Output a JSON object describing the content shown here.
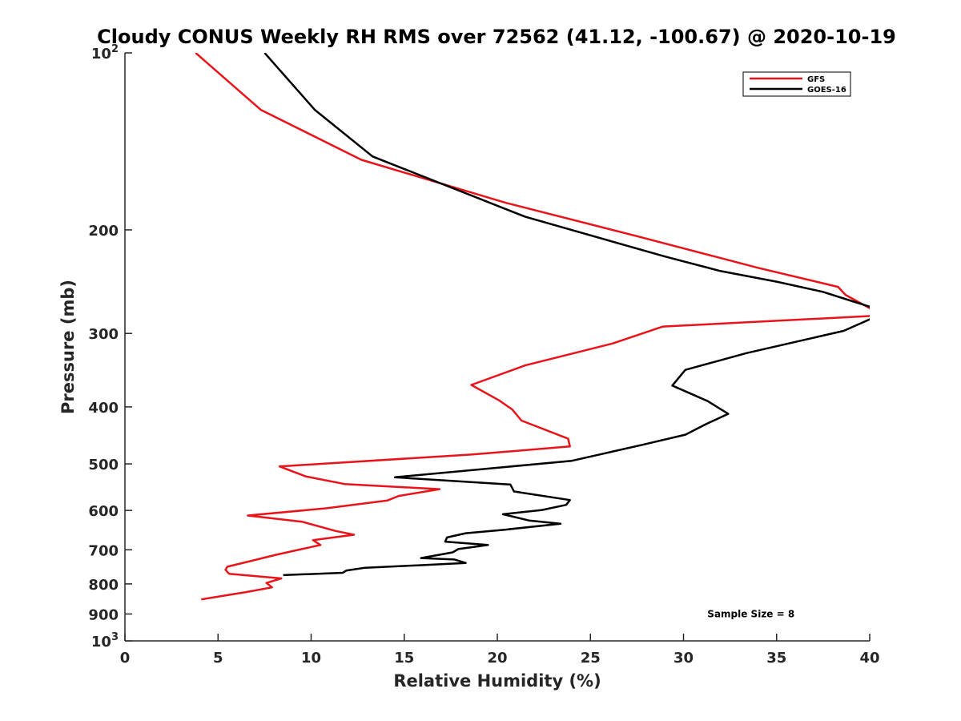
{
  "chart_data": {
    "type": "line",
    "title": "Cloudy CONUS Weekly RH RMS over 72562 (41.12, -100.67) @ 2020-10-19",
    "xlabel": "Relative Humidity (%)",
    "ylabel": "Pressure (mb)",
    "xlim": [
      0,
      40
    ],
    "ylim": [
      100,
      1000
    ],
    "yscale": "log",
    "yreversed": true,
    "x_ticks": [
      0,
      5,
      10,
      15,
      20,
      25,
      30,
      35,
      40
    ],
    "x_tick_labels": [
      "0",
      "5",
      "10",
      "15",
      "20",
      "25",
      "30",
      "35",
      "40"
    ],
    "y_ticks": [
      100,
      200,
      300,
      400,
      500,
      600,
      700,
      800,
      900,
      1000
    ],
    "y_tick_labels": [
      {
        "base": "10",
        "exp": "2"
      },
      {
        "text": "200"
      },
      {
        "text": "300"
      },
      {
        "text": "400"
      },
      {
        "text": "500"
      },
      {
        "text": "600"
      },
      {
        "text": "700"
      },
      {
        "text": "800"
      },
      {
        "text": "900"
      },
      {
        "base": "10",
        "exp": "3"
      }
    ],
    "legend_position": "top-right",
    "grid": false,
    "annotation": "Sample Size = 8",
    "series": [
      {
        "name": "GFS",
        "color": "#e8141a",
        "points": [
          [
            3.8,
            100
          ],
          [
            7.3,
            125
          ],
          [
            12.7,
            152
          ],
          [
            20.5,
            180
          ],
          [
            27.5,
            205
          ],
          [
            34.0,
            232
          ],
          [
            38.3,
            250
          ],
          [
            38.7,
            258
          ],
          [
            40.3,
            275
          ],
          [
            40.3,
            280
          ],
          [
            28.9,
            292
          ],
          [
            26.2,
            312
          ],
          [
            21.5,
            340
          ],
          [
            18.6,
            367
          ],
          [
            20.1,
            390
          ],
          [
            20.8,
            404
          ],
          [
            21.3,
            422
          ],
          [
            23.8,
            453
          ],
          [
            23.9,
            467
          ],
          [
            18.6,
            482
          ],
          [
            8.3,
            505
          ],
          [
            9.7,
            525
          ],
          [
            11.8,
            541
          ],
          [
            16.9,
            552
          ],
          [
            14.7,
            567
          ],
          [
            14.1,
            577
          ],
          [
            10.8,
            595
          ],
          [
            6.6,
            612
          ],
          [
            9.5,
            627
          ],
          [
            11.3,
            650
          ],
          [
            12.3,
            660
          ],
          [
            10.1,
            674
          ],
          [
            10.5,
            687
          ],
          [
            9.5,
            698
          ],
          [
            8.1,
            714
          ],
          [
            6.7,
            732
          ],
          [
            5.5,
            748
          ],
          [
            5.4,
            757
          ],
          [
            5.6,
            769
          ],
          [
            8.4,
            783
          ],
          [
            7.6,
            797
          ],
          [
            7.9,
            811
          ],
          [
            6.5,
            826
          ],
          [
            4.1,
            850
          ]
        ]
      },
      {
        "name": "GOES-16",
        "color": "#000000",
        "points": [
          [
            7.5,
            100
          ],
          [
            10.2,
            125
          ],
          [
            13.3,
            150
          ],
          [
            21.5,
            190
          ],
          [
            29.0,
            222
          ],
          [
            32.0,
            235
          ],
          [
            35.0,
            245
          ],
          [
            37.5,
            255
          ],
          [
            39.0,
            264
          ],
          [
            40.3,
            272
          ],
          [
            40.3,
            278
          ],
          [
            40.1,
            283
          ],
          [
            38.6,
            297
          ],
          [
            33.4,
            324
          ],
          [
            30.1,
            346
          ],
          [
            29.4,
            368
          ],
          [
            31.3,
            391
          ],
          [
            32.4,
            411
          ],
          [
            31.2,
            428
          ],
          [
            30.1,
            446
          ],
          [
            27.8,
            464
          ],
          [
            24.0,
            494
          ],
          [
            14.5,
            527
          ],
          [
            20.7,
            542
          ],
          [
            20.9,
            557
          ],
          [
            23.9,
            576
          ],
          [
            23.7,
            587
          ],
          [
            22.4,
            599
          ],
          [
            20.3,
            609
          ],
          [
            21.7,
            624
          ],
          [
            23.4,
            632
          ],
          [
            20.4,
            647
          ],
          [
            18.3,
            656
          ],
          [
            17.3,
            667
          ],
          [
            17.2,
            678
          ],
          [
            19.5,
            687
          ],
          [
            17.9,
            698
          ],
          [
            17.6,
            707
          ],
          [
            15.9,
            723
          ],
          [
            17.7,
            727
          ],
          [
            18.3,
            737
          ],
          [
            15.7,
            744
          ],
          [
            12.9,
            751
          ],
          [
            11.9,
            759
          ],
          [
            11.7,
            766
          ],
          [
            8.5,
            773
          ]
        ]
      }
    ]
  }
}
